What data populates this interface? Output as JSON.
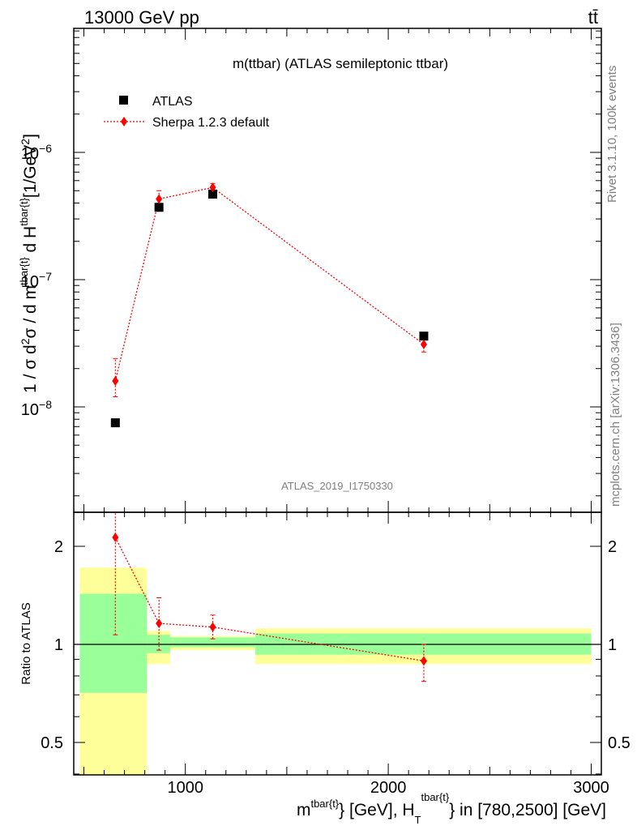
{
  "header": {
    "energy_label": "13000 GeV pp",
    "process_label": "tt̄"
  },
  "side_labels": {
    "rivet": "Rivet 3.1.10,  100k events",
    "mcplots": "mcplots.cern.ch [arXiv:1306.3436]"
  },
  "chart_data": [
    {
      "type": "scatter",
      "title": "m(ttbar) (ATLAS semileptonic ttbar)",
      "watermark": "ATLAS_2019_I1750330",
      "yscale": "log",
      "ylim": [
        1.5e-09,
        9e-06
      ],
      "xlim": [
        450,
        3050
      ],
      "ylabel": "1 / σ d²σ / d m^{tbar{t}} d H_T^{tbar{t}} [1/GeV²]",
      "ytick_labels": [
        "10^-8",
        "10^-7",
        "10^-6"
      ],
      "legend": {
        "placement": "top-left",
        "entries": [
          "ATLAS",
          "Sherpa 1.2.3 default"
        ]
      },
      "series": [
        {
          "name": "ATLAS",
          "marker": "square",
          "color": "#000000",
          "x": [
            655,
            870,
            1135,
            2175
          ],
          "y": [
            7.5e-09,
            3.7e-07,
            4.7e-07,
            3.6e-08
          ]
        },
        {
          "name": "Sherpa 1.2.3 default",
          "marker": "diamond",
          "line": "dotted",
          "color": "#ff0000",
          "x": [
            655,
            870,
            1135,
            2175
          ],
          "y": [
            1.6e-08,
            4.3e-07,
            5.3e-07,
            3.1e-08
          ],
          "yerr_low": [
            4e-09,
            6e-08,
            4e-08,
            4e-09
          ],
          "yerr_high": [
            8e-09,
            7e-08,
            4e-08,
            3e-09
          ]
        }
      ]
    },
    {
      "type": "scatter",
      "ylabel": "Ratio to ATLAS",
      "xlabel": "m^{tbar{t}} [GeV], H_T^{tbar{t}} in [780,2500] [GeV]",
      "xlim": [
        450,
        3050
      ],
      "ylim": [
        0.33,
        2.3
      ],
      "yscale": "log",
      "xtick_labels": [
        "1000",
        "2000",
        "3000"
      ],
      "ytick_labels": [
        "0.5",
        "1",
        "2"
      ],
      "reference_line": 1,
      "bands": [
        {
          "x0": 480,
          "x1": 810,
          "green": [
            0.71,
            1.43
          ],
          "yellow": [
            0.3,
            1.72
          ]
        },
        {
          "x0": 810,
          "x1": 925,
          "green": [
            0.94,
            1.07
          ],
          "yellow": [
            0.87,
            1.1
          ]
        },
        {
          "x0": 925,
          "x1": 1345,
          "green": [
            0.98,
            1.05
          ],
          "yellow": [
            0.96,
            1.06
          ]
        },
        {
          "x0": 1345,
          "x1": 3000,
          "green": [
            0.93,
            1.08
          ],
          "yellow": [
            0.87,
            1.12
          ]
        }
      ],
      "series": [
        {
          "name": "Sherpa 1.2.3 default",
          "marker": "diamond",
          "line": "dotted",
          "color": "#ff0000",
          "x": [
            655,
            870,
            1135,
            2175
          ],
          "y": [
            2.13,
            1.16,
            1.13,
            0.89
          ],
          "yerr_low": [
            1.06,
            0.2,
            0.09,
            0.12
          ],
          "yerr_high": [
            0.6,
            0.23,
            0.1,
            0.11
          ]
        }
      ],
      "colors": {
        "green": "#99ff99",
        "yellow": "#ffff99",
        "mc": "#ff0000"
      }
    }
  ]
}
